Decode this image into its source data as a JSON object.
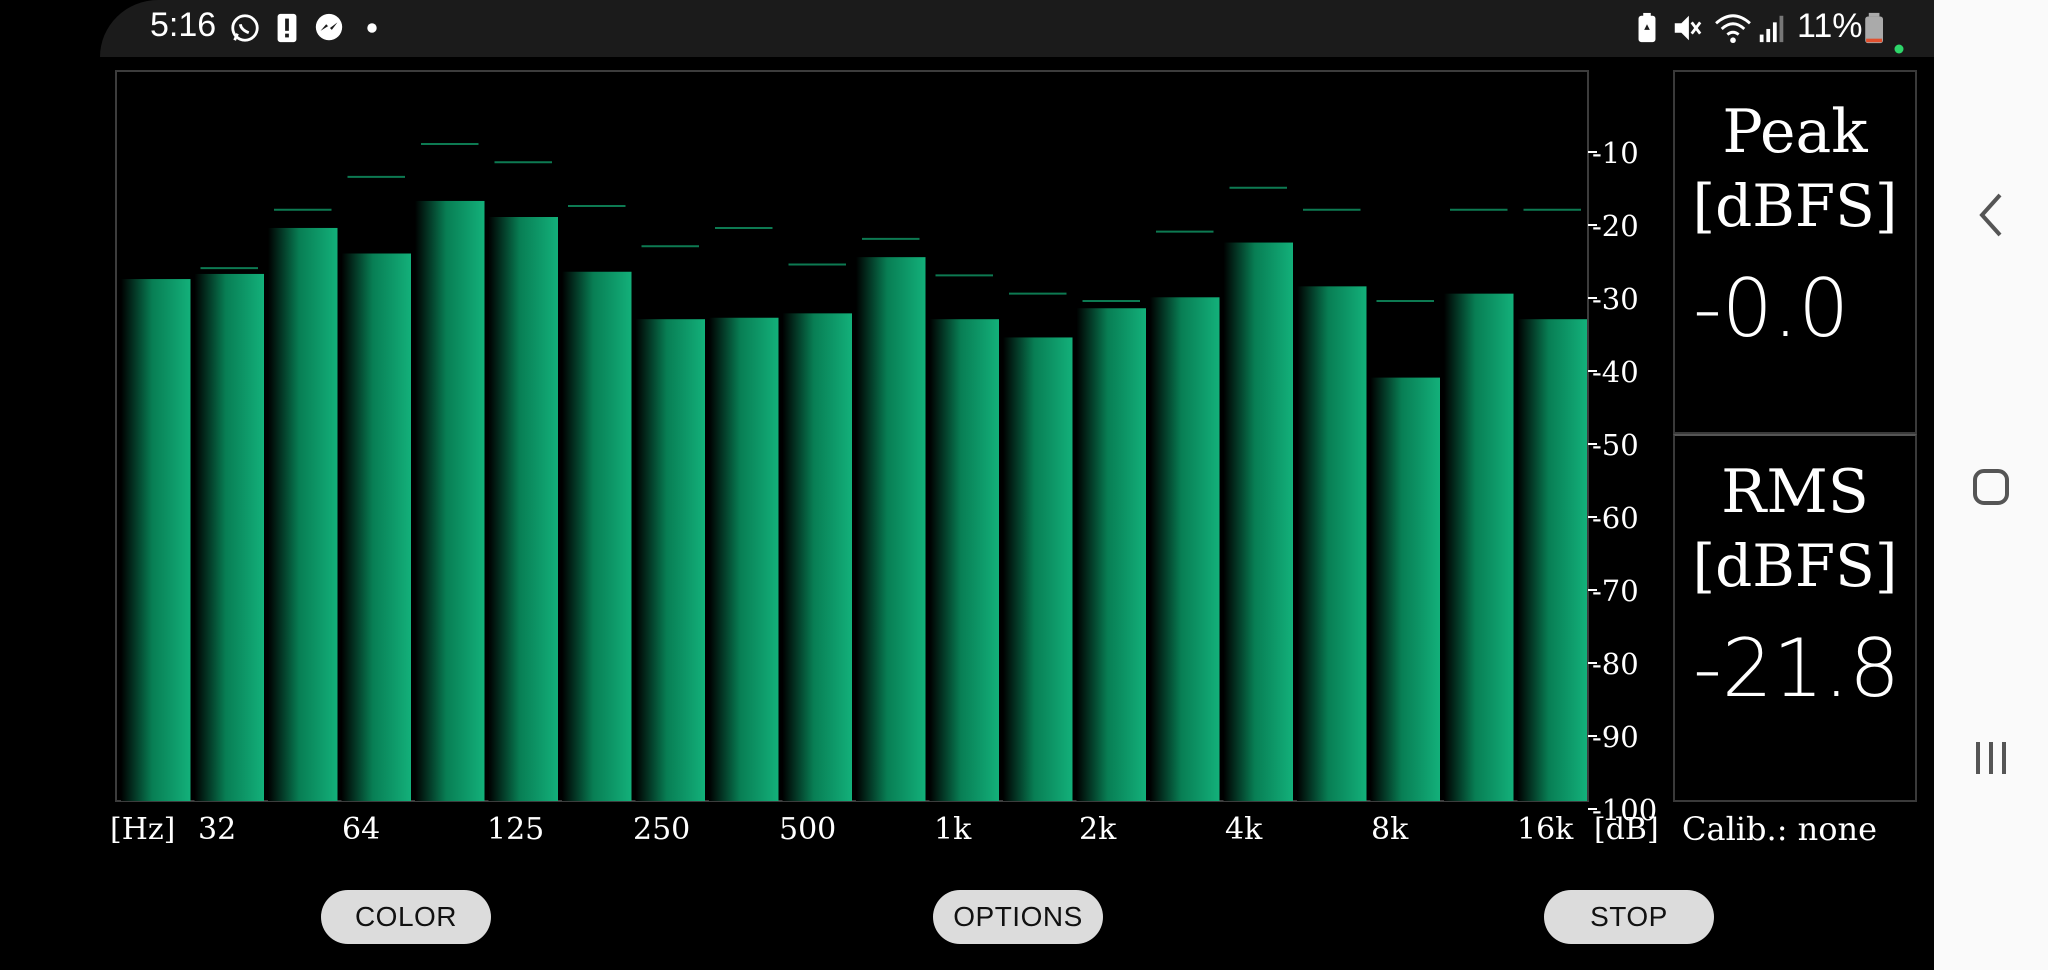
{
  "status_bar": {
    "time": "5:16",
    "battery_percent": "11%",
    "left_icons": [
      "whatsapp-icon",
      "alert-icon",
      "messenger-icon",
      "dot-icon"
    ],
    "right_icons": [
      "battery-saver-icon",
      "mute-icon",
      "wifi-icon",
      "signal-icon",
      "battery-icon"
    ]
  },
  "chart_data": {
    "type": "bar",
    "categories": [
      "32",
      "",
      "64",
      "",
      "125",
      "",
      "250",
      "",
      "500",
      "",
      "1k",
      "",
      "2k",
      "",
      "4k",
      "",
      "8k",
      "",
      "16k",
      ""
    ],
    "x_tick_labels": [
      "[Hz]",
      "32",
      "64",
      "125",
      "250",
      "500",
      "1k",
      "2k",
      "4k",
      "8k",
      "16k",
      "[dB]"
    ],
    "values": [
      -28.5,
      -27.8,
      -21.5,
      -25,
      -17.8,
      -20,
      -27.5,
      -34,
      -33.8,
      -33.2,
      -25.5,
      -34,
      -36.5,
      -32.5,
      -31,
      -23.5,
      -29.5,
      -42,
      -30.5,
      -34
    ],
    "peak_hold": [
      -100,
      -27,
      -19,
      -14.5,
      -10,
      -12.5,
      -18.5,
      -24,
      -21.5,
      -26.5,
      -23,
      -28,
      -30.5,
      -31.5,
      -22,
      -16,
      -19,
      -31.5,
      -19,
      -19
    ],
    "ylim": [
      -100,
      0
    ],
    "y_ticks": [
      "-10",
      "-20",
      "-30",
      "-40",
      "-50",
      "-60",
      "-70",
      "-80",
      "-90",
      "-100"
    ],
    "ylabel": "[dB]",
    "bar_color": "#0fa46c"
  },
  "meters": {
    "peak": {
      "title": "Peak",
      "unit": "[dBFS]",
      "value": "-0.0"
    },
    "rms": {
      "title": "RMS",
      "unit": "[dBFS]",
      "value": "-21.8"
    }
  },
  "calibration": "Calib.: none",
  "buttons": {
    "color": "COLOR",
    "options": "OPTIONS",
    "stop": "STOP"
  },
  "nav": [
    "back-icon",
    "home-icon",
    "recents-icon"
  ]
}
